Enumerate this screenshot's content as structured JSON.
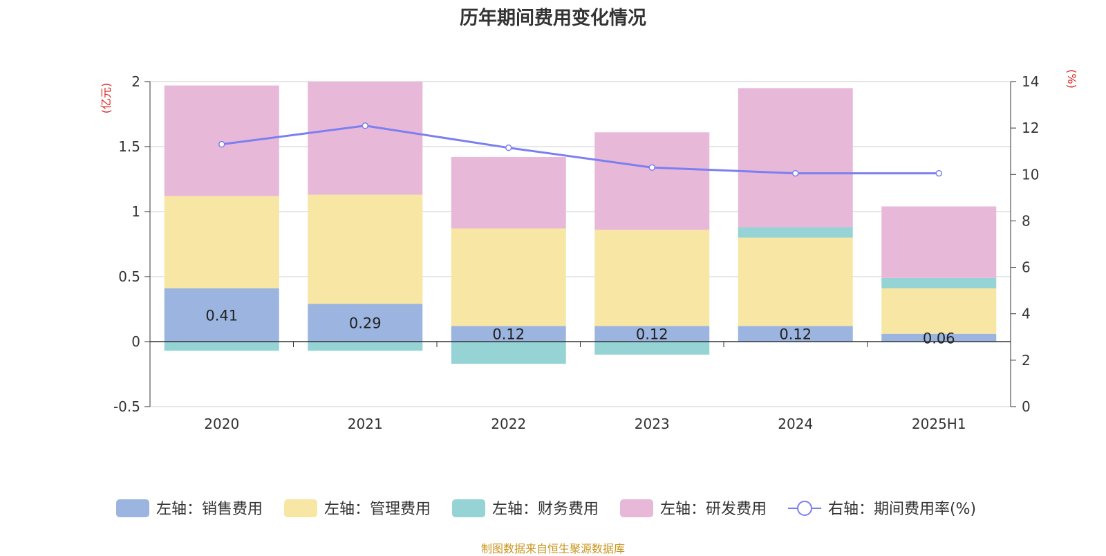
{
  "chart_data": {
    "type": "bar",
    "stacked": true,
    "title": "历年期间费用变化情况",
    "categories": [
      "2020",
      "2021",
      "2022",
      "2023",
      "2024",
      "2025H1"
    ],
    "y_left": {
      "unit": "(亿元)",
      "range": [
        -0.5,
        2
      ],
      "ticks": [
        "-0.5",
        "0",
        "0.5",
        "1",
        "1.5",
        "2"
      ]
    },
    "y_right": {
      "unit": "(%)",
      "range": [
        0,
        14
      ],
      "ticks": [
        "0",
        "2",
        "4",
        "6",
        "8",
        "10",
        "12",
        "14"
      ]
    },
    "series": [
      {
        "name": "左轴：销售费用",
        "axis": "left",
        "kind": "bar",
        "color": "#9bb5e0",
        "values": [
          0.41,
          0.29,
          0.12,
          0.12,
          0.12,
          0.06
        ],
        "labels": [
          "0.41",
          "0.29",
          "0.12",
          "0.12",
          "0.12",
          "0.06"
        ]
      },
      {
        "name": "左轴：管理费用",
        "axis": "left",
        "kind": "bar",
        "color": "#f8e6a5",
        "values": [
          0.71,
          0.84,
          0.75,
          0.74,
          0.68,
          0.35
        ]
      },
      {
        "name": "左轴：财务费用",
        "axis": "left",
        "kind": "bar",
        "color": "#95d3d4",
        "values": [
          -0.07,
          -0.07,
          -0.17,
          -0.1,
          0.08,
          0.08
        ]
      },
      {
        "name": "左轴：研发费用",
        "axis": "left",
        "kind": "bar",
        "color": "#e8b8d9",
        "values": [
          0.85,
          0.87,
          0.55,
          0.75,
          1.07,
          0.55
        ]
      },
      {
        "name": "右轴：期间费用率(%)",
        "axis": "right",
        "kind": "line",
        "color": "#7b7ff0",
        "values": [
          11.3,
          12.1,
          11.15,
          10.3,
          10.05,
          10.05
        ]
      }
    ],
    "legend_position": "bottom",
    "grid": true
  },
  "source": "制图数据来自恒生聚源数据库"
}
